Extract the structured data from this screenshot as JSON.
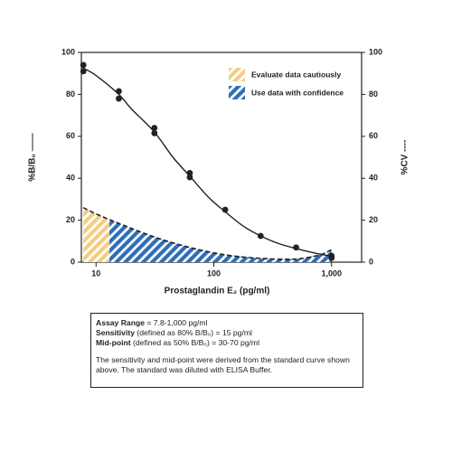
{
  "chart_data": {
    "type": "line",
    "xscale": "log",
    "xlim": [
      7.5,
      1800
    ],
    "xticks": [
      10,
      100,
      {
        "value": 1000,
        "label": "1,000"
      }
    ],
    "ylim": [
      0,
      100
    ],
    "yticks": [
      0,
      20,
      40,
      60,
      80,
      100
    ],
    "y2lim": [
      0,
      100
    ],
    "y2ticks": [
      0,
      20,
      40,
      60,
      80,
      100
    ],
    "xlabel": "Prostaglandin E₂ (pg/ml)",
    "ylabel": "%B/B₀ ——",
    "y2label": "%CV ----",
    "legend": "upper right",
    "regions": [
      {
        "name": "Evaluate data cautiously",
        "color": "#f2cd82",
        "xrange": [
          7.8,
          13
        ]
      },
      {
        "name": "Use data with confidence",
        "color": "#2d6fb8",
        "xrange": [
          13,
          1000
        ]
      }
    ],
    "series": [
      {
        "type": "scatter",
        "color": "#222222",
        "x": [
          7.8,
          7.8,
          15.6,
          15.6,
          31.3,
          31.3,
          62.5,
          62.5,
          125,
          250,
          500,
          1000,
          1000
        ],
        "values": [
          94,
          91,
          81.5,
          78,
          64,
          61.5,
          42.5,
          40.5,
          25,
          12.5,
          7,
          3,
          2
        ]
      },
      {
        "type": "line",
        "color": "#222222",
        "x": [
          7.8,
          10,
          15.6,
          20,
          31.3,
          45,
          62.5,
          90,
          125,
          180,
          250,
          350,
          500,
          700,
          1000
        ],
        "values": [
          92.5,
          89,
          80,
          73,
          62,
          50,
          41,
          31,
          24,
          17,
          12.5,
          9,
          6.5,
          4.5,
          2.8
        ]
      },
      {
        "type": "line",
        "axis": "y2",
        "dash": true,
        "color": "#222222",
        "x": [
          7.8,
          10,
          15.6,
          31.3,
          62.5,
          125,
          250,
          500,
          800,
          1000
        ],
        "values": [
          26,
          23,
          18.5,
          12,
          7,
          3.5,
          1.8,
          1.5,
          3.5,
          6
        ]
      }
    ]
  },
  "notes": {
    "lines": [
      {
        "label": "Assay Range",
        "text": " = 7.8-1,000 pg/ml"
      },
      {
        "label": "Sensitivity",
        "text": " (defined as 80% B/B₀) = 15 pg/ml"
      },
      {
        "label": "Mid-point",
        "text": " (defined as 50% B/B₀) = 30-70 pg/ml"
      }
    ],
    "paragraph": "The sensitivity and mid-point were derived from the standard curve shown above. The standard was diluted with ELISA Buffer."
  }
}
